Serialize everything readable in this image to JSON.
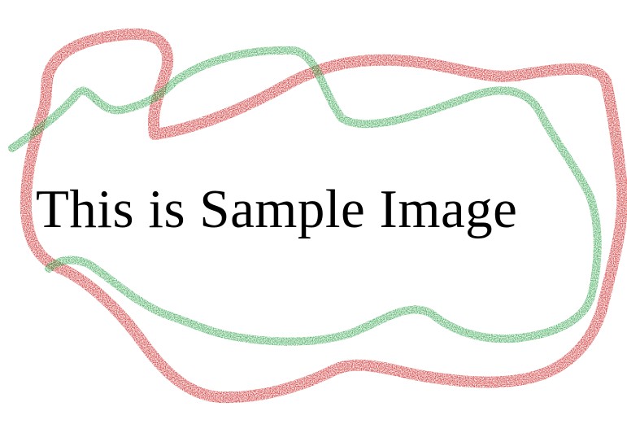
{
  "caption": "This is Sample Image",
  "colors": {
    "background": "#ffffff",
    "text": "#000000",
    "red_outline": "#cc1f1f",
    "green_outline": "#1f9a3a"
  }
}
